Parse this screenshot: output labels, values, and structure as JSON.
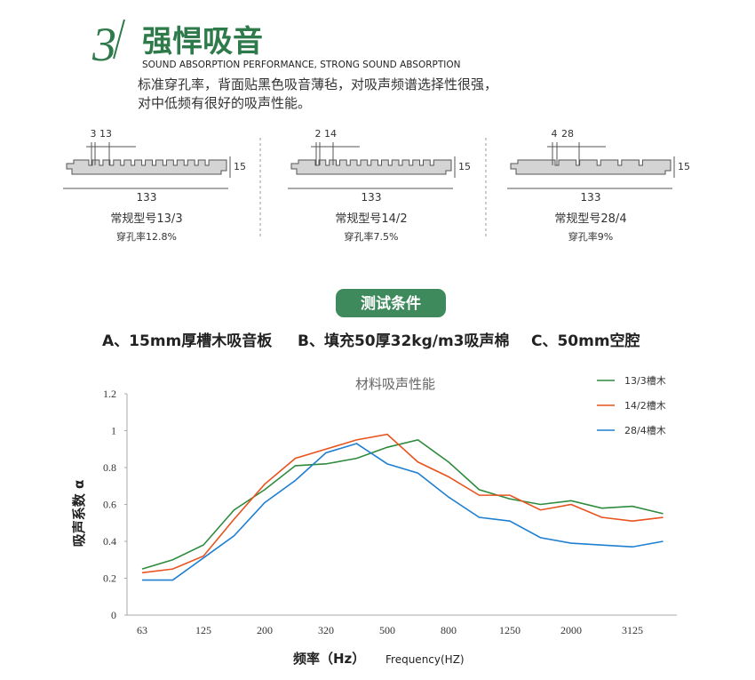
{
  "header": {
    "number": "3",
    "title": "强悍吸音",
    "subtitle": "SOUND ABSORPTION PERFORMANCE, STRONG SOUND ABSORPTION",
    "description": [
      "标准穿孔率，背面贴黑色吸音薄毡，对吸声频谱选择性很强，",
      "对中低频有很好的吸声性能。"
    ]
  },
  "profiles": [
    {
      "dims": [
        "3",
        "13"
      ],
      "thickness": "15",
      "width": "133",
      "name": "常规型号13/3",
      "rate": "穿孔率12.8%"
    },
    {
      "dims": [
        "2",
        "14"
      ],
      "thickness": "15",
      "width": "133",
      "name": "常规型号14/2",
      "rate": "穿孔率7.5%"
    },
    {
      "dims": [
        "4",
        "28"
      ],
      "thickness": "15",
      "width": "133",
      "name": "常规型号28/4",
      "rate": "穿孔率9%"
    }
  ],
  "test": {
    "badge": "测试条件",
    "conditions": [
      "A、15mm厚槽木吸音板",
      "B、填充50厚32kg/m3吸声棉",
      "C、50mm空腔"
    ]
  },
  "chart_data": {
    "type": "line",
    "title": "材料吸声性能",
    "y_label": "吸声系数 α",
    "x_label": "频率（Hz）",
    "x_label_en": "Frequency(HZ)",
    "categories": [
      "63",
      null,
      "125",
      null,
      "200",
      null,
      "320",
      null,
      "500",
      null,
      "800",
      null,
      "1250",
      null,
      "2000",
      null,
      "3125",
      null
    ],
    "ylim": [
      0,
      1.2
    ],
    "yticks": [
      0,
      0.2,
      0.4,
      0.6,
      0.8,
      1,
      1.2
    ],
    "grid": false,
    "legend": "top-right",
    "series": [
      {
        "name": "13/3槽木",
        "color": "#2e8b3e",
        "values": [
          0.25,
          0.3,
          0.38,
          0.57,
          0.68,
          0.81,
          0.82,
          0.85,
          0.91,
          0.95,
          0.83,
          0.68,
          0.63,
          0.6,
          0.62,
          0.58,
          0.59,
          0.55
        ]
      },
      {
        "name": "14/2槽木",
        "color": "#e8531e",
        "values": [
          0.23,
          0.25,
          0.32,
          0.52,
          0.71,
          0.85,
          0.9,
          0.95,
          0.98,
          0.83,
          0.75,
          0.65,
          0.65,
          0.57,
          0.6,
          0.53,
          0.51,
          0.53
        ]
      },
      {
        "name": "28/4槽木",
        "color": "#1f7fd0",
        "values": [
          0.19,
          0.19,
          0.31,
          0.43,
          0.61,
          0.73,
          0.88,
          0.93,
          0.82,
          0.77,
          0.64,
          0.53,
          0.51,
          0.42,
          0.39,
          0.38,
          0.37,
          0.4
        ]
      }
    ]
  }
}
